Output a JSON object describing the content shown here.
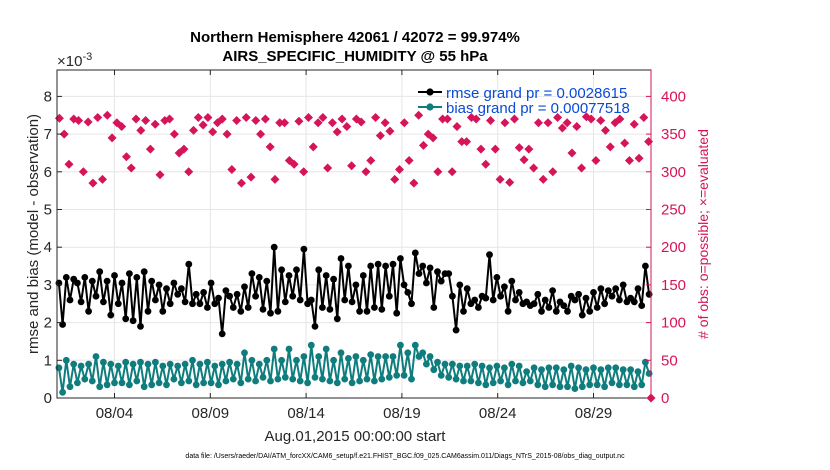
{
  "chart_data": {
    "type": "line",
    "title_line1": "Northern Hemisphere 42061 / 42072 = 99.974%",
    "title_line2": "AIRS_SPECIFIC_HUMIDITY @ 55 hPa",
    "xlabel": "Aug.01,2015 00:00:00 start",
    "ylabel": "rmse and bias (model - observation)",
    "y2label": "# of obs: o=possible; ×=evaluated",
    "yexponent": "×10",
    "yexponent_power": "-3",
    "footnote": "data file: /Users/raeder/DAI/ATM_forcXX/CAM6_setup/f.e21.FHIST_BGC.f09_025.CAM6assim.011/Diags_NTrS_2015-08/obs_diag_output.nc",
    "xlim": [
      1.0,
      32.0
    ],
    "ylim": [
      0,
      8.7
    ],
    "y2lim": [
      0,
      435
    ],
    "xtick_positions": [
      4,
      9,
      14,
      19,
      24,
      29
    ],
    "xtick_labels": [
      "08/04",
      "08/09",
      "08/14",
      "08/19",
      "08/24",
      "08/29"
    ],
    "yticks": [
      0,
      1,
      2,
      3,
      4,
      5,
      6,
      7,
      8
    ],
    "y2ticks": [
      0,
      50,
      100,
      150,
      200,
      250,
      300,
      350,
      400
    ],
    "grid": true,
    "legend_position": "top-right",
    "colors": {
      "rmse": "#000000",
      "bias": "#0f7d7d",
      "obs": "#d6145a",
      "grid": "#e6e6e6",
      "legend_text": "#0a4ad8"
    },
    "series": [
      {
        "name": "rmse grand pr = 0.0028615",
        "axis": "left",
        "values": [
          3.05,
          1.95,
          3.2,
          2.6,
          3.15,
          3.05,
          2.55,
          3.2,
          2.3,
          3.1,
          2.7,
          3.35,
          2.55,
          3.1,
          2.2,
          3.25,
          2.5,
          3.05,
          2.1,
          3.3,
          2.05,
          3.2,
          1.9,
          3.35,
          2.3,
          3.1,
          2.6,
          3.0,
          2.3,
          2.9,
          2.5,
          3.05,
          2.75,
          2.9,
          2.55,
          3.55,
          2.5,
          2.75,
          2.5,
          2.8,
          2.4,
          3.05,
          2.5,
          2.65,
          1.7,
          2.85,
          2.7,
          2.4,
          2.75,
          2.3,
          2.95,
          2.4,
          3.3,
          2.7,
          3.2,
          2.35,
          3.1,
          2.25,
          4.0,
          2.3,
          3.4,
          2.55,
          3.25,
          2.7,
          3.4,
          2.6,
          3.95,
          2.5,
          2.6,
          1.9,
          3.4,
          2.4,
          3.25,
          2.35,
          3.15,
          2.1,
          3.7,
          2.6,
          3.5,
          2.55,
          3.0,
          2.3,
          3.25,
          2.3,
          3.5,
          2.4,
          3.55,
          2.35,
          3.5,
          2.7,
          3.55,
          2.25,
          3.7,
          3.0,
          2.8,
          2.5,
          3.85,
          3.3,
          3.5,
          3.05,
          3.45,
          2.4,
          3.35,
          3.1,
          3.3,
          3.3,
          2.7,
          1.8,
          3.0,
          2.3,
          2.9,
          2.5,
          2.6,
          2.4,
          2.7,
          2.65,
          3.8,
          2.6,
          3.2,
          2.7,
          2.95,
          2.3,
          3.1,
          2.6,
          2.8,
          2.5,
          2.55,
          2.45,
          2.5,
          2.75,
          2.3,
          2.6,
          2.4,
          2.85,
          2.3,
          2.55,
          2.45,
          2.3,
          2.7,
          2.6,
          2.75,
          2.2,
          2.65,
          2.3,
          2.8,
          2.4,
          2.9,
          2.5,
          2.85,
          2.7,
          2.9,
          2.6,
          3.0,
          2.55,
          2.65,
          2.55,
          2.9,
          2.45,
          3.5,
          2.75
        ]
      },
      {
        "name": "bias grand pr = 0.00077518",
        "axis": "left",
        "values": [
          0.8,
          0.15,
          1.0,
          0.3,
          0.9,
          0.4,
          0.85,
          0.5,
          0.9,
          0.45,
          1.1,
          0.3,
          0.95,
          0.35,
          0.9,
          0.4,
          0.85,
          0.4,
          0.95,
          0.35,
          0.9,
          0.45,
          0.95,
          0.3,
          0.9,
          0.35,
          0.95,
          0.4,
          0.85,
          0.35,
          0.9,
          0.5,
          0.85,
          0.4,
          0.9,
          0.45,
          1.0,
          0.35,
          0.9,
          0.4,
          0.95,
          0.4,
          0.85,
          0.35,
          0.9,
          0.45,
          0.95,
          0.5,
          0.9,
          0.4,
          1.2,
          0.5,
          1.0,
          0.45,
          0.9,
          0.55,
          1.0,
          0.45,
          1.3,
          0.5,
          1.0,
          0.55,
          1.3,
          0.5,
          1.0,
          0.45,
          1.1,
          0.4,
          1.4,
          0.55,
          1.1,
          0.5,
          1.3,
          0.45,
          1.0,
          0.4,
          1.2,
          0.5,
          1.05,
          0.4,
          1.1,
          0.45,
          1.0,
          0.5,
          1.15,
          0.45,
          1.1,
          0.5,
          1.1,
          0.55,
          1.1,
          0.6,
          1.4,
          0.6,
          1.2,
          0.5,
          1.4,
          1.1,
          1.2,
          0.9,
          1.1,
          0.75,
          0.95,
          0.6,
          0.9,
          0.55,
          0.9,
          0.5,
          0.85,
          0.45,
          0.85,
          0.45,
          0.9,
          0.4,
          0.85,
          0.35,
          0.8,
          0.4,
          0.85,
          0.45,
          0.8,
          0.35,
          0.9,
          0.45,
          0.85,
          0.4,
          0.7,
          0.45,
          0.8,
          0.35,
          0.75,
          0.3,
          0.8,
          0.35,
          0.8,
          0.3,
          0.75,
          0.3,
          0.85,
          0.25,
          0.8,
          0.3,
          0.75,
          0.35,
          0.8,
          0.35,
          0.75,
          0.3,
          0.8,
          0.4,
          0.8,
          0.35,
          0.75,
          0.35,
          0.75,
          0.3,
          0.7,
          0.35,
          0.95,
          0.65
        ]
      },
      {
        "name": "obs_evaluated",
        "axis": "right",
        "values": [
          371,
          350,
          310,
          370,
          368,
          300,
          366,
          285,
          372,
          290,
          375,
          345,
          365,
          360,
          320,
          305,
          370,
          355,
          368,
          330,
          363,
          296,
          368,
          370,
          350,
          325,
          330,
          300,
          355,
          372,
          362,
          372,
          353,
          365,
          370,
          350,
          303,
          368,
          285,
          372,
          293,
          368,
          350,
          370,
          333,
          290,
          365,
          365,
          315,
          310,
          367,
          300,
          372,
          333,
          365,
          372,
          305,
          365,
          353,
          370,
          360,
          308,
          370,
          366,
          300,
          315,
          372,
          348,
          365,
          354,
          290,
          303,
          365,
          315,
          285,
          375,
          335,
          350,
          345,
          300,
          370,
          370,
          300,
          360,
          340,
          340,
          372,
          370,
          330,
          310,
          368,
          330,
          290,
          365,
          286,
          370,
          332,
          316,
          330,
          305,
          365,
          290,
          365,
          300,
          372,
          358,
          365,
          325,
          360,
          305,
          373,
          370,
          315,
          368,
          355,
          333,
          365,
          370,
          338,
          315,
          363,
          318,
          372,
          340
        ]
      }
    ]
  }
}
